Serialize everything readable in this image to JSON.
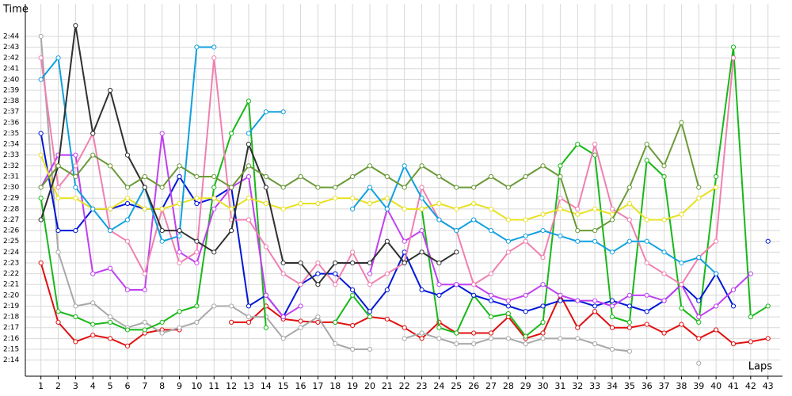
{
  "chart_data": {
    "type": "line",
    "y_label": "Time",
    "x_label": "Laps",
    "x": [
      1,
      2,
      3,
      4,
      5,
      6,
      7,
      8,
      9,
      10,
      11,
      12,
      13,
      14,
      15,
      16,
      17,
      18,
      19,
      20,
      21,
      22,
      23,
      24,
      25,
      26,
      27,
      28,
      29,
      30,
      31,
      32,
      33,
      34,
      35,
      36,
      37,
      38,
      39,
      40,
      41,
      42,
      43
    ],
    "xlim": [
      0.1,
      43.7
    ],
    "xticks": [
      1,
      2,
      3,
      4,
      5,
      6,
      7,
      8,
      9,
      10,
      11,
      12,
      13,
      14,
      15,
      16,
      17,
      18,
      19,
      20,
      21,
      22,
      23,
      24,
      25,
      26,
      27,
      28,
      29,
      30,
      31,
      32,
      33,
      34,
      35,
      36,
      37,
      38,
      39,
      40,
      41,
      42,
      43
    ],
    "ylim": [
      132.5,
      167
    ],
    "yticks": [
      {
        "value": 134,
        "label": "2:14"
      },
      {
        "value": 135,
        "label": "2:15"
      },
      {
        "value": 136,
        "label": "2:16"
      },
      {
        "value": 137,
        "label": "2:17"
      },
      {
        "value": 138,
        "label": "2:18"
      },
      {
        "value": 139,
        "label": "2:19"
      },
      {
        "value": 140,
        "label": "2:20"
      },
      {
        "value": 141,
        "label": "2:21"
      },
      {
        "value": 142,
        "label": "2:22"
      },
      {
        "value": 143,
        "label": "2:23"
      },
      {
        "value": 144,
        "label": "2:24"
      },
      {
        "value": 145,
        "label": "2:25"
      },
      {
        "value": 146,
        "label": "2:26"
      },
      {
        "value": 147,
        "label": "2:27"
      },
      {
        "value": 148,
        "label": "2:28"
      },
      {
        "value": 149,
        "label": "2:29"
      },
      {
        "value": 150,
        "label": "2:30"
      },
      {
        "value": 151,
        "label": "2:31"
      },
      {
        "value": 152,
        "label": "2:32"
      },
      {
        "value": 153,
        "label": "2:33"
      },
      {
        "value": 154,
        "label": "2:34"
      },
      {
        "value": 155,
        "label": "2:35"
      },
      {
        "value": 156,
        "label": "2:36"
      },
      {
        "value": 157,
        "label": "2:37"
      },
      {
        "value": 158,
        "label": "2:38"
      },
      {
        "value": 159,
        "label": "2:39"
      },
      {
        "value": 160,
        "label": "2:40"
      },
      {
        "value": 161,
        "label": "2:41"
      },
      {
        "value": 162,
        "label": "2:42"
      },
      {
        "value": 163,
        "label": "2:43"
      },
      {
        "value": 164,
        "label": "2:44"
      }
    ],
    "grid": true,
    "series": [
      {
        "color": "#e01010",
        "values": [
          143,
          137.5,
          135.7,
          136.3,
          136,
          135.3,
          136.5,
          136.8,
          136.8,
          null,
          null,
          137.5,
          137.5,
          139,
          137.8,
          137.6,
          137.5,
          137.5,
          137.2,
          138,
          137.8,
          137,
          136,
          137.5,
          136.5,
          136.5,
          136.5,
          138,
          136,
          136.5,
          140,
          137,
          138.5,
          137,
          137,
          137.3,
          136.5,
          137.3,
          136,
          136.8,
          135.5,
          135.7,
          136
        ]
      },
      {
        "color": "#a8a8a8",
        "values": [
          164,
          144,
          139,
          139.3,
          138,
          137,
          137.5,
          136.5,
          137,
          137.5,
          139,
          139,
          138,
          138,
          136,
          137,
          138,
          135.5,
          135,
          135,
          null,
          136,
          136.5,
          136,
          135.5,
          135.5,
          136,
          136,
          135.5,
          136,
          136,
          136,
          135.5,
          135,
          134.8,
          null,
          null,
          null,
          133.7,
          null,
          null,
          null,
          null
        ]
      },
      {
        "color": "#18b818",
        "values": [
          149,
          138.5,
          138,
          137.3,
          137.5,
          136.8,
          136.8,
          137.5,
          138.5,
          139,
          150,
          155,
          158,
          137,
          null,
          null,
          null,
          137.5,
          140,
          138,
          null,
          null,
          148,
          137,
          136.5,
          140,
          138,
          138.3,
          136.2,
          137.5,
          152,
          154,
          153,
          138,
          137.5,
          152.5,
          151,
          138.8,
          137.5,
          151,
          163,
          138,
          139
        ]
      },
      {
        "color": "#0018d8",
        "values": [
          155,
          146,
          146,
          148,
          148,
          148.5,
          148,
          148,
          151,
          148.5,
          149,
          150,
          139,
          140,
          138,
          141,
          142,
          142,
          140.5,
          138.5,
          140.5,
          144,
          140.5,
          140,
          141,
          140,
          139.5,
          139,
          138.5,
          139,
          139.5,
          139.5,
          139,
          139.5,
          139,
          138.5,
          139.5,
          141,
          139.5,
          142,
          139,
          null,
          145
        ]
      },
      {
        "color": "#c040f0",
        "values": [
          150,
          153,
          153,
          142,
          142.5,
          140.5,
          140.5,
          155,
          144,
          143,
          148,
          150,
          151,
          140,
          138,
          139,
          null,
          null,
          null,
          142,
          148,
          145,
          146,
          141,
          141,
          141,
          140,
          139.5,
          140,
          141,
          140,
          139.5,
          139.5,
          139,
          140,
          140,
          139.5,
          141,
          138,
          139,
          140.5,
          142,
          null
        ]
      },
      {
        "color": "#f080b0",
        "values": [
          162,
          150,
          152,
          155,
          146,
          145,
          142,
          148,
          143,
          144,
          162,
          147,
          147,
          144.5,
          142,
          141,
          143,
          141,
          144,
          141,
          142,
          143,
          150,
          147,
          146,
          141,
          142,
          144,
          145,
          143.5,
          149,
          148,
          154,
          148,
          147,
          143,
          142,
          141,
          143.5,
          145,
          162,
          null,
          null
        ]
      },
      {
        "color": "#e8e020",
        "values": [
          153,
          149,
          149,
          148,
          148,
          149,
          148,
          148,
          148.5,
          149,
          149,
          148,
          149,
          148.5,
          148,
          148.5,
          148.5,
          149,
          149,
          148.5,
          149,
          148,
          148,
          148.5,
          148,
          148.5,
          148,
          147,
          147,
          147.5,
          148,
          147.5,
          148,
          147.5,
          148.5,
          147,
          147,
          147.5,
          149,
          150,
          null,
          null,
          null
        ]
      },
      {
        "color": "#10a0e0",
        "values": [
          160,
          162,
          150,
          148,
          146,
          147,
          150,
          145,
          145.5,
          163,
          163,
          null,
          155,
          157,
          157,
          null,
          null,
          null,
          148,
          150,
          148,
          152,
          149,
          147,
          146,
          147,
          146,
          145,
          145.5,
          146,
          145.5,
          145,
          145,
          144,
          145,
          145,
          144,
          143,
          143.5,
          142,
          null,
          null,
          null
        ]
      },
      {
        "color": "#303030",
        "values": [
          147,
          152,
          165,
          155,
          159,
          153,
          150,
          146,
          146,
          145,
          144,
          146,
          154,
          150,
          143,
          143,
          141,
          143,
          143,
          143,
          145,
          143,
          144,
          143,
          144,
          null,
          null,
          null,
          null,
          null,
          null,
          null,
          null,
          null,
          null,
          null,
          null,
          null,
          null,
          null,
          null,
          null,
          null
        ]
      },
      {
        "color": "#6a9a38",
        "values": [
          150,
          152,
          151,
          153,
          152,
          150,
          151,
          150,
          152,
          151,
          151,
          150,
          152,
          151,
          150,
          151,
          150,
          150,
          151,
          152,
          151,
          150,
          152,
          151,
          150,
          150,
          151,
          150,
          151,
          152,
          151,
          146,
          146,
          147,
          150,
          154,
          152,
          156,
          150,
          null,
          null,
          null,
          null
        ]
      }
    ]
  }
}
